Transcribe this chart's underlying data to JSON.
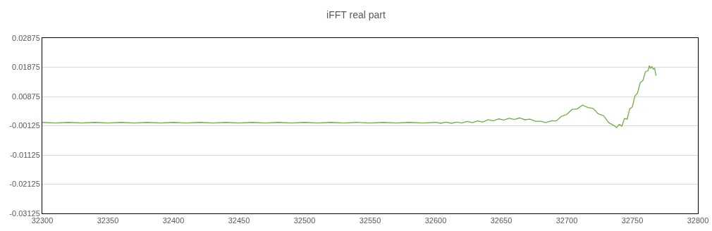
{
  "chart_data": {
    "type": "line",
    "title": "iFFT real part",
    "x": [
      32300,
      32310,
      32320,
      32330,
      32340,
      32350,
      32360,
      32370,
      32380,
      32390,
      32400,
      32410,
      32420,
      32430,
      32440,
      32450,
      32460,
      32470,
      32480,
      32490,
      32500,
      32510,
      32520,
      32530,
      32540,
      32550,
      32560,
      32570,
      32580,
      32590,
      32600,
      32604,
      32608,
      32612,
      32616,
      32620,
      32624,
      32628,
      32632,
      32636,
      32640,
      32644,
      32648,
      32652,
      32656,
      32660,
      32664,
      32668,
      32672,
      32676,
      32680,
      32684,
      32688,
      32692,
      32696,
      32700,
      32704,
      32708,
      32712,
      32716,
      32720,
      32724,
      32728,
      32732,
      32736,
      32738,
      32740,
      32742,
      32744,
      32746,
      32748,
      32750,
      32752,
      32754,
      32756,
      32758,
      32760,
      32762,
      32763,
      32764,
      32765,
      32766,
      32767,
      32768
    ],
    "series": [
      {
        "color": "#70ad47",
        "values": [
          -0.0001,
          -0.0003,
          -0.0001,
          -0.0003,
          -0.0001,
          -0.0003,
          -0.0001,
          -0.0003,
          -0.0001,
          -0.0003,
          -0.0001,
          -0.0003,
          -0.0001,
          -0.0003,
          -0.0001,
          -0.0003,
          -0.0001,
          -0.0003,
          -0.0001,
          -0.0003,
          -0.0001,
          -0.0003,
          -0.0001,
          -0.0003,
          -0.0001,
          -0.0003,
          -0.0001,
          -0.0003,
          -0.0001,
          -0.0003,
          -0.0001,
          -0.0004,
          0.0,
          -0.0004,
          0.0,
          -0.0003,
          0.0002,
          -0.0002,
          0.0004,
          0.0,
          0.0008,
          0.0004,
          0.0011,
          0.0007,
          0.0013,
          0.0009,
          0.0014,
          0.0008,
          0.001,
          0.0003,
          0.0003,
          -0.0002,
          0.0004,
          0.0004,
          0.002,
          0.0026,
          0.0043,
          0.0045,
          0.0058,
          0.005,
          0.0047,
          0.0028,
          0.0022,
          -0.0002,
          -0.0012,
          -0.0019,
          -0.0008,
          -0.0014,
          0.0012,
          0.001,
          0.0045,
          0.0052,
          0.009,
          0.01,
          0.0135,
          0.0142,
          0.0172,
          0.0176,
          0.0193,
          0.0184,
          0.019,
          0.0181,
          0.0184,
          0.0159
        ]
      }
    ],
    "xlim": [
      32300,
      32800
    ],
    "xticks": [
      32300,
      32350,
      32400,
      32450,
      32500,
      32550,
      32600,
      32650,
      32700,
      32750,
      32800
    ],
    "ylim": [
      -0.03125,
      0.02875
    ],
    "yticks": [
      -0.03125,
      -0.02125,
      -0.01125,
      -0.00125,
      0.00875,
      0.01875,
      0.02875
    ],
    "grid": "y",
    "legend": false,
    "marker": "none",
    "line_style": "solid"
  }
}
